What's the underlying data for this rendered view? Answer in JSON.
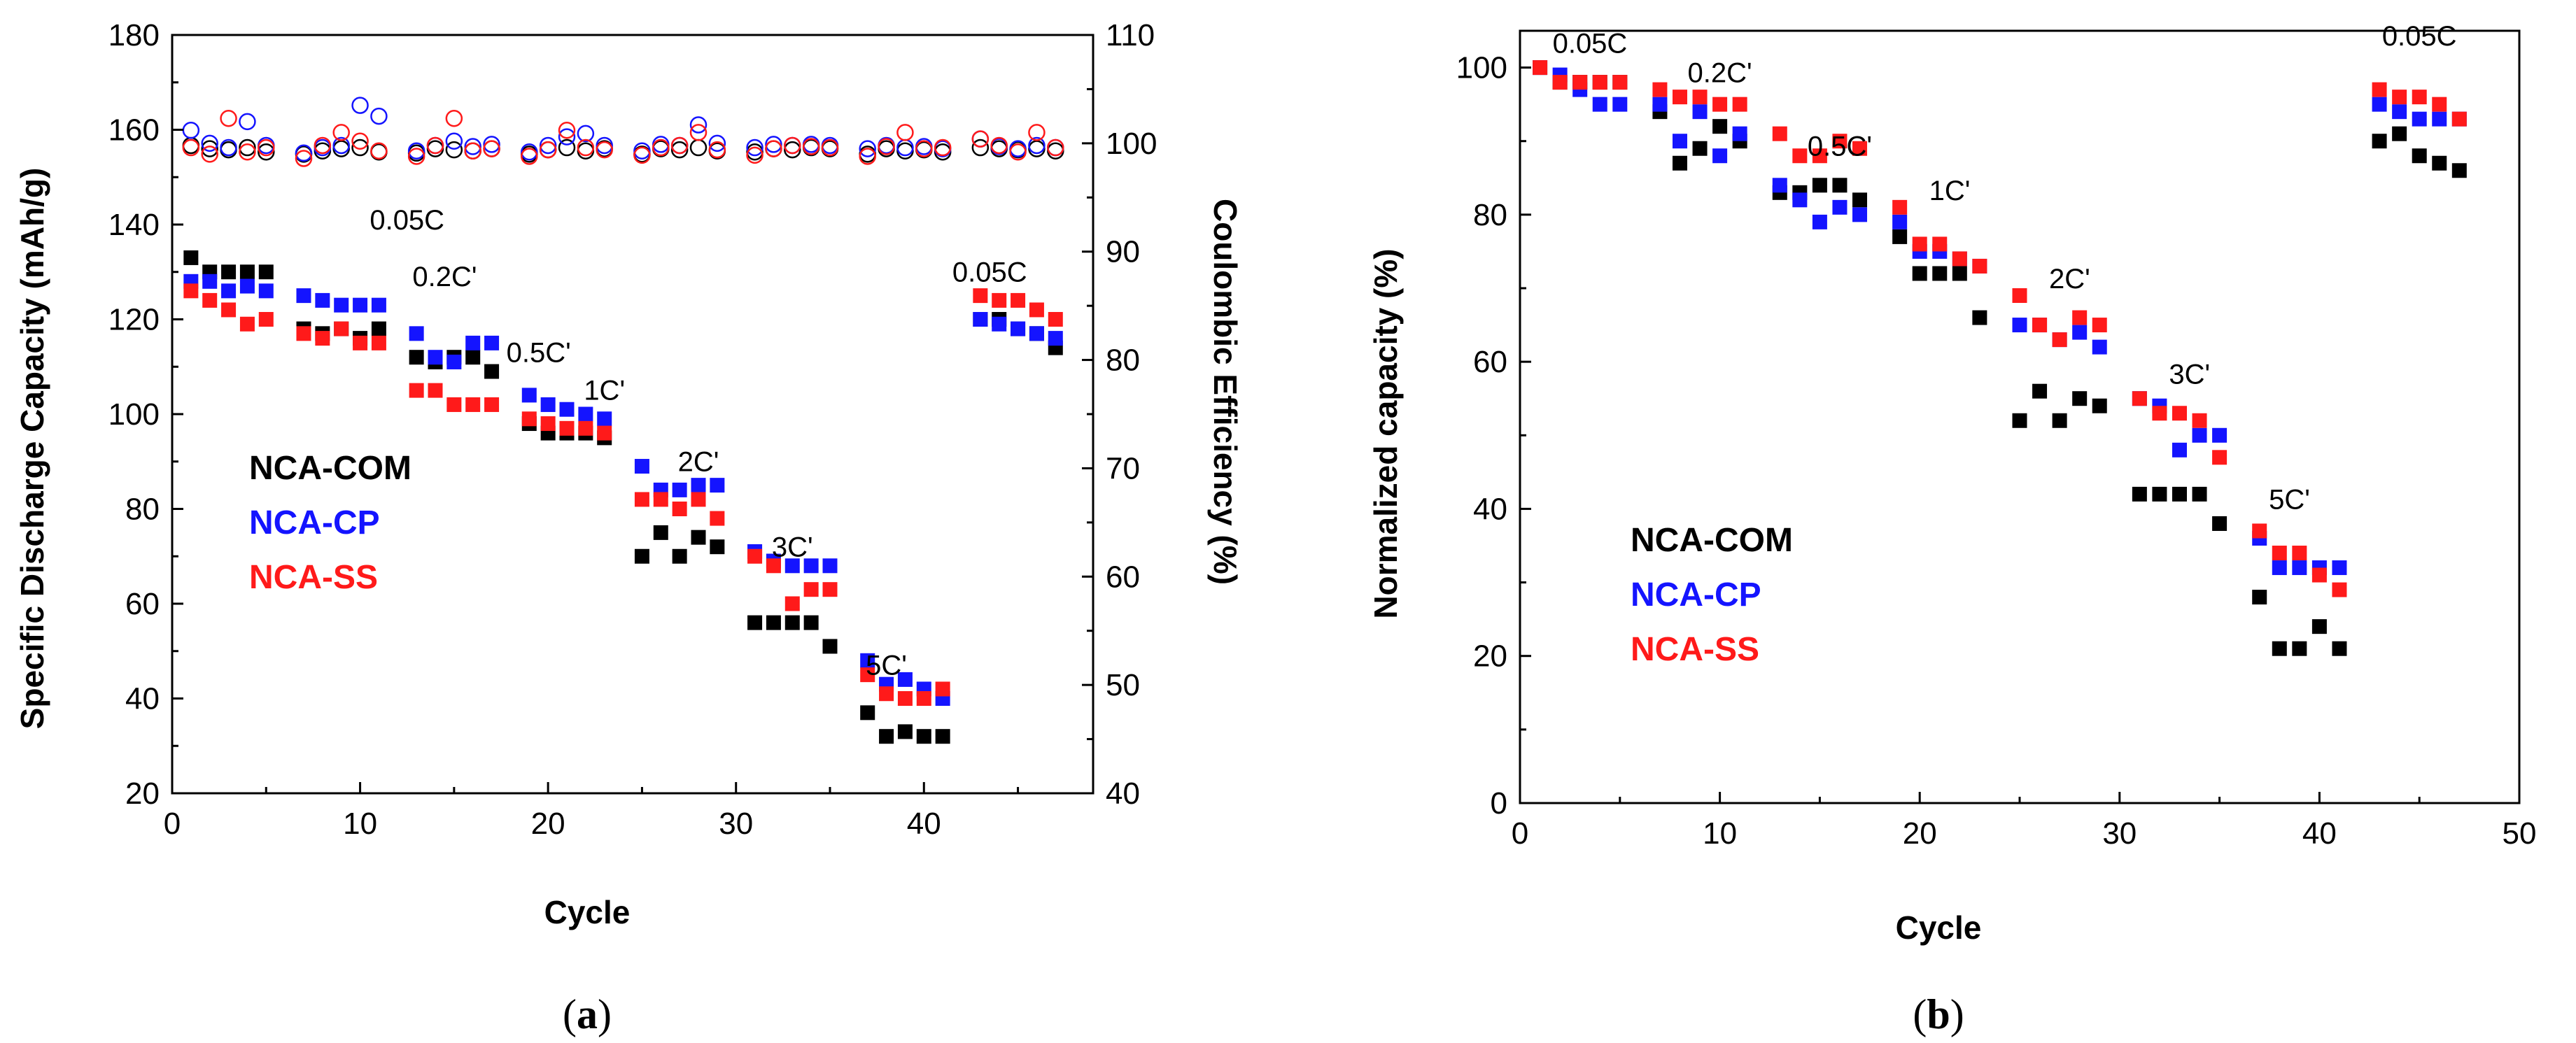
{
  "colors": {
    "NCA-COM": "#000000",
    "NCA-CP": "#1414ff",
    "NCA-SS": "#ff1a1a"
  },
  "chart_data": [
    {
      "id": "a",
      "type": "scatter",
      "caption": "(a)",
      "xlabel": "Cycle",
      "ylabel": "Specific Discharge Capacity (mAh/g)",
      "y2label": "Coulombic Efficiency (%)",
      "xlim": [
        0,
        49
      ],
      "ylim": [
        20,
        180
      ],
      "y2lim": [
        40,
        110
      ],
      "xticks": [
        0,
        10,
        20,
        30,
        40
      ],
      "yticks": [
        20,
        40,
        60,
        80,
        100,
        120,
        140,
        160,
        180
      ],
      "y2ticks": [
        40,
        50,
        60,
        70,
        80,
        90,
        100,
        110
      ],
      "legend": [
        "NCA-COM",
        "NCA-CP",
        "NCA-SS"
      ],
      "rate_labels": [
        {
          "text": "0.05C",
          "x": 12.5,
          "y": 139
        },
        {
          "text": "0.2C'",
          "x": 14.5,
          "y": 127
        },
        {
          "text": "0.5C'",
          "x": 19.5,
          "y": 111
        },
        {
          "text": "1C'",
          "x": 23.0,
          "y": 103
        },
        {
          "text": "2C'",
          "x": 28.0,
          "y": 88
        },
        {
          "text": "3C'",
          "x": 33.0,
          "y": 70
        },
        {
          "text": "5C'",
          "x": 38.0,
          "y": 45
        },
        {
          "text": "0.05C",
          "x": 43.5,
          "y": 128
        }
      ],
      "series": [
        {
          "name": "NCA-COM",
          "marker": "square",
          "x": [
            1,
            2,
            3,
            4,
            5,
            7,
            8,
            9,
            10,
            11,
            13,
            14,
            15,
            16,
            17,
            19,
            20,
            21,
            22,
            23,
            25,
            26,
            27,
            28,
            29,
            31,
            32,
            33,
            34,
            35,
            37,
            38,
            39,
            40,
            41,
            43,
            44,
            45,
            46,
            47
          ],
          "y": [
            133,
            130,
            130,
            130,
            130,
            118,
            117,
            118,
            116,
            118,
            112,
            111,
            112,
            112,
            109,
            98,
            96,
            96,
            96,
            95,
            70,
            75,
            70,
            74,
            72,
            56,
            56,
            56,
            56,
            51,
            37,
            32,
            33,
            32,
            32,
            120,
            120,
            118,
            117,
            114
          ]
        },
        {
          "name": "NCA-CP",
          "marker": "square",
          "x": [
            1,
            2,
            3,
            4,
            5,
            7,
            8,
            9,
            10,
            11,
            13,
            14,
            15,
            16,
            17,
            19,
            20,
            21,
            22,
            23,
            25,
            26,
            27,
            28,
            29,
            31,
            32,
            33,
            34,
            35,
            37,
            38,
            39,
            40,
            41,
            43,
            44,
            45,
            46,
            47
          ],
          "y": [
            128,
            128,
            126,
            127,
            126,
            125,
            124,
            123,
            123,
            123,
            117,
            112,
            111,
            115,
            115,
            104,
            102,
            101,
            100,
            99,
            89,
            84,
            84,
            85,
            85,
            71,
            69,
            68,
            68,
            68,
            48,
            43,
            44,
            42,
            40,
            120,
            119,
            118,
            117,
            116
          ]
        },
        {
          "name": "NCA-SS",
          "marker": "square",
          "x": [
            1,
            2,
            3,
            4,
            5,
            7,
            8,
            9,
            10,
            11,
            13,
            14,
            15,
            16,
            17,
            19,
            20,
            21,
            22,
            23,
            25,
            26,
            27,
            28,
            29,
            31,
            32,
            33,
            34,
            35,
            37,
            38,
            39,
            40,
            41,
            43,
            44,
            45,
            46,
            47
          ],
          "y": [
            126,
            124,
            122,
            119,
            120,
            117,
            116,
            118,
            115,
            115,
            105,
            105,
            102,
            102,
            102,
            99,
            98,
            97,
            97,
            96,
            82,
            82,
            80,
            82,
            78,
            70,
            68,
            60,
            63,
            63,
            45,
            41,
            40,
            40,
            42,
            125,
            124,
            124,
            122,
            120
          ]
        },
        {
          "name": "NCA-COM CE",
          "marker": "open-circle",
          "axis": "y2",
          "x": [
            1,
            2,
            3,
            4,
            5,
            7,
            8,
            9,
            10,
            11,
            13,
            14,
            15,
            16,
            17,
            19,
            20,
            21,
            22,
            23,
            25,
            26,
            27,
            28,
            29,
            31,
            32,
            33,
            34,
            35,
            37,
            38,
            39,
            40,
            41,
            43,
            44,
            45,
            46,
            47
          ],
          "y": [
            99.8,
            99.5,
            99.4,
            99.6,
            99.2,
            99.0,
            99.3,
            99.5,
            99.6,
            99.2,
            99.1,
            99.5,
            99.4,
            99.3,
            99.5,
            99.0,
            99.4,
            99.6,
            99.3,
            99.5,
            99.0,
            99.5,
            99.4,
            99.6,
            99.3,
            99.2,
            99.5,
            99.4,
            99.6,
            99.5,
            99.0,
            99.5,
            99.3,
            99.4,
            99.2,
            99.6,
            99.5,
            99.4,
            99.5,
            99.3
          ]
        },
        {
          "name": "NCA-CP CE",
          "marker": "open-circle",
          "axis": "y2",
          "x": [
            1,
            2,
            3,
            4,
            5,
            7,
            8,
            9,
            10,
            11,
            13,
            14,
            15,
            16,
            17,
            19,
            20,
            21,
            22,
            23,
            25,
            26,
            27,
            28,
            29,
            31,
            32,
            33,
            34,
            35,
            37,
            38,
            39,
            40,
            41,
            43,
            44,
            45,
            46,
            47
          ],
          "y": [
            101.2,
            100.0,
            99.6,
            102.0,
            99.8,
            99.1,
            99.6,
            99.8,
            103.5,
            102.5,
            99.3,
            99.8,
            100.2,
            99.7,
            99.9,
            99.2,
            99.8,
            100.6,
            100.9,
            99.8,
            99.3,
            99.9,
            99.8,
            101.7,
            100.0,
            99.6,
            99.9,
            99.8,
            99.9,
            99.8,
            99.5,
            99.8,
            99.6,
            99.7,
            99.5,
            100.4,
            99.7,
            99.5,
            99.8,
            99.6
          ]
        },
        {
          "name": "NCA-SS CE",
          "marker": "open-circle",
          "axis": "y2",
          "x": [
            1,
            2,
            3,
            4,
            5,
            7,
            8,
            9,
            10,
            11,
            13,
            14,
            15,
            16,
            17,
            19,
            20,
            21,
            22,
            23,
            25,
            26,
            27,
            28,
            29,
            31,
            32,
            33,
            34,
            35,
            37,
            38,
            39,
            40,
            41,
            43,
            44,
            45,
            46,
            47
          ],
          "y": [
            99.6,
            99.0,
            102.3,
            99.2,
            99.6,
            98.6,
            99.8,
            101.0,
            100.2,
            99.3,
            98.8,
            99.8,
            102.3,
            99.3,
            99.5,
            98.8,
            99.4,
            101.2,
            99.6,
            99.4,
            98.9,
            99.6,
            99.8,
            101.0,
            99.4,
            98.9,
            99.5,
            99.8,
            99.7,
            99.6,
            98.8,
            99.7,
            101.0,
            99.5,
            99.6,
            100.4,
            99.8,
            99.2,
            101.0,
            99.6
          ]
        }
      ]
    },
    {
      "id": "b",
      "type": "scatter",
      "caption": "(b)",
      "xlabel": "Cycle",
      "ylabel": "Normalized capacity (%)",
      "xlim": [
        0,
        50
      ],
      "ylim": [
        0,
        105
      ],
      "xticks": [
        0,
        10,
        20,
        30,
        40,
        50
      ],
      "yticks": [
        0,
        20,
        40,
        60,
        80,
        100
      ],
      "legend": [
        "NCA-COM",
        "NCA-CP",
        "NCA-SS"
      ],
      "rate_labels": [
        {
          "text": "0.05C",
          "x": 3.5,
          "y": 102
        },
        {
          "text": "0.2C'",
          "x": 10.0,
          "y": 98
        },
        {
          "text": "0.5C'",
          "x": 16.0,
          "y": 88
        },
        {
          "text": "1C'",
          "x": 21.5,
          "y": 82
        },
        {
          "text": "2C'",
          "x": 27.5,
          "y": 70
        },
        {
          "text": "3C'",
          "x": 33.5,
          "y": 57
        },
        {
          "text": "5C'",
          "x": 38.5,
          "y": 40
        },
        {
          "text": "0.05C",
          "x": 45.0,
          "y": 103
        }
      ],
      "series": [
        {
          "name": "NCA-COM",
          "marker": "square",
          "x": [
            1,
            2,
            3,
            4,
            5,
            7,
            8,
            9,
            10,
            11,
            13,
            14,
            15,
            16,
            17,
            19,
            20,
            21,
            22,
            23,
            25,
            26,
            27,
            28,
            29,
            31,
            32,
            33,
            34,
            35,
            37,
            38,
            39,
            40,
            41,
            43,
            44,
            45,
            46,
            47
          ],
          "y": [
            100,
            98,
            98,
            98,
            98,
            94,
            87,
            89,
            92,
            90,
            83,
            83,
            84,
            84,
            82,
            77,
            72,
            72,
            72,
            66,
            52,
            56,
            52,
            55,
            54,
            42,
            42,
            42,
            42,
            38,
            28,
            21,
            21,
            24,
            21,
            90,
            91,
            88,
            87,
            86
          ]
        },
        {
          "name": "NCA-CP",
          "marker": "square",
          "x": [
            1,
            2,
            3,
            4,
            5,
            7,
            8,
            9,
            10,
            11,
            13,
            14,
            15,
            16,
            17,
            19,
            20,
            21,
            22,
            23,
            25,
            26,
            27,
            28,
            29,
            31,
            32,
            33,
            34,
            35,
            37,
            38,
            39,
            40,
            41,
            43,
            44,
            45,
            46,
            47
          ],
          "y": [
            100,
            99,
            97,
            95,
            95,
            95,
            90,
            94,
            88,
            91,
            84,
            82,
            79,
            81,
            80,
            79,
            75,
            75,
            74,
            73,
            65,
            65,
            63,
            64,
            62,
            55,
            54,
            48,
            50,
            50,
            36,
            32,
            32,
            32,
            32,
            95,
            94,
            93,
            93,
            93
          ]
        },
        {
          "name": "NCA-SS",
          "marker": "square",
          "x": [
            1,
            2,
            3,
            4,
            5,
            7,
            8,
            9,
            10,
            11,
            13,
            14,
            15,
            16,
            17,
            19,
            20,
            21,
            22,
            23,
            25,
            26,
            27,
            28,
            29,
            31,
            32,
            33,
            34,
            35,
            37,
            38,
            39,
            40,
            41,
            43,
            44,
            45,
            46,
            47
          ],
          "y": [
            100,
            98,
            98,
            98,
            98,
            97,
            96,
            96,
            95,
            95,
            91,
            88,
            88,
            90,
            89,
            81,
            76,
            76,
            74,
            73,
            69,
            65,
            63,
            66,
            65,
            55,
            53,
            53,
            52,
            47,
            37,
            34,
            34,
            31,
            29,
            97,
            96,
            96,
            95,
            93
          ]
        }
      ]
    }
  ]
}
